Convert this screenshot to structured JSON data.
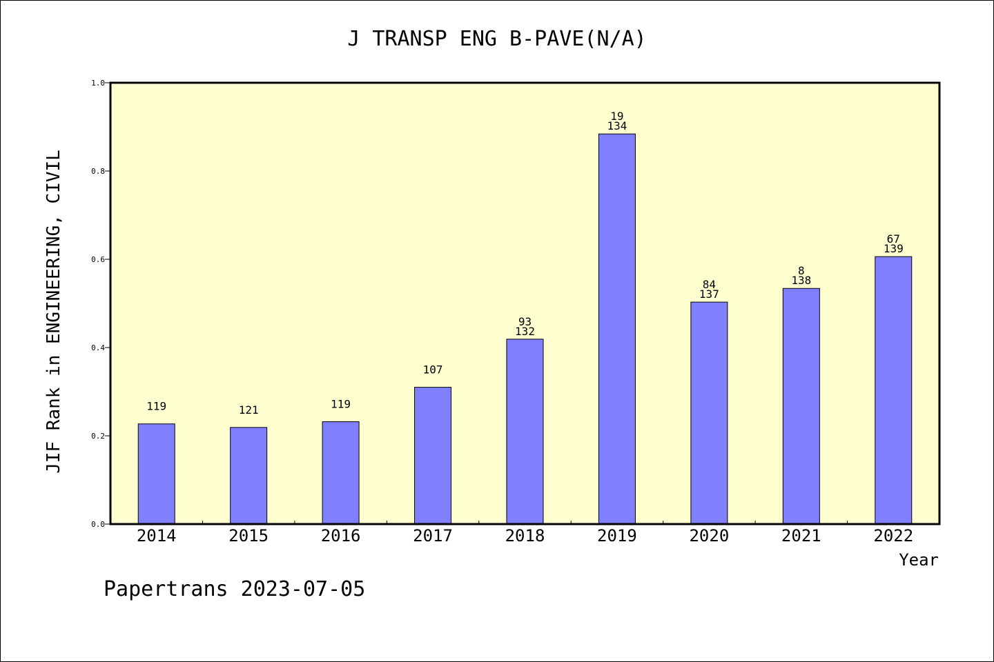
{
  "chart_data": {
    "type": "bar",
    "title": "J TRANSP ENG B-PAVE(N/A)",
    "xlabel": "Year",
    "ylabel": "JIF Rank in ENGINEERING, CIVIL",
    "ylim": [
      0,
      1.0
    ],
    "yticks": [
      "0.0",
      "0.2",
      "0.4",
      "0.6",
      "0.8",
      "1.0"
    ],
    "categories": [
      "2014",
      "2015",
      "2016",
      "2017",
      "2018",
      "2019",
      "2020",
      "2021",
      "2022"
    ],
    "values": [
      0.227,
      0.219,
      0.232,
      0.31,
      0.419,
      0.884,
      0.503,
      0.534,
      0.606
    ],
    "labels": [
      [
        "119"
      ],
      [
        "121"
      ],
      [
        "119"
      ],
      [
        "107"
      ],
      [
        "93",
        "132"
      ],
      [
        "19",
        "134"
      ],
      [
        "84",
        "137"
      ],
      [
        "8",
        "138"
      ],
      [
        "67",
        "139"
      ]
    ],
    "bar_color": "#8080ff",
    "plot_background": "#ffffd0",
    "grid": false,
    "legend": "none"
  },
  "footer": {
    "credit": "Papertrans 2023-07-05"
  }
}
